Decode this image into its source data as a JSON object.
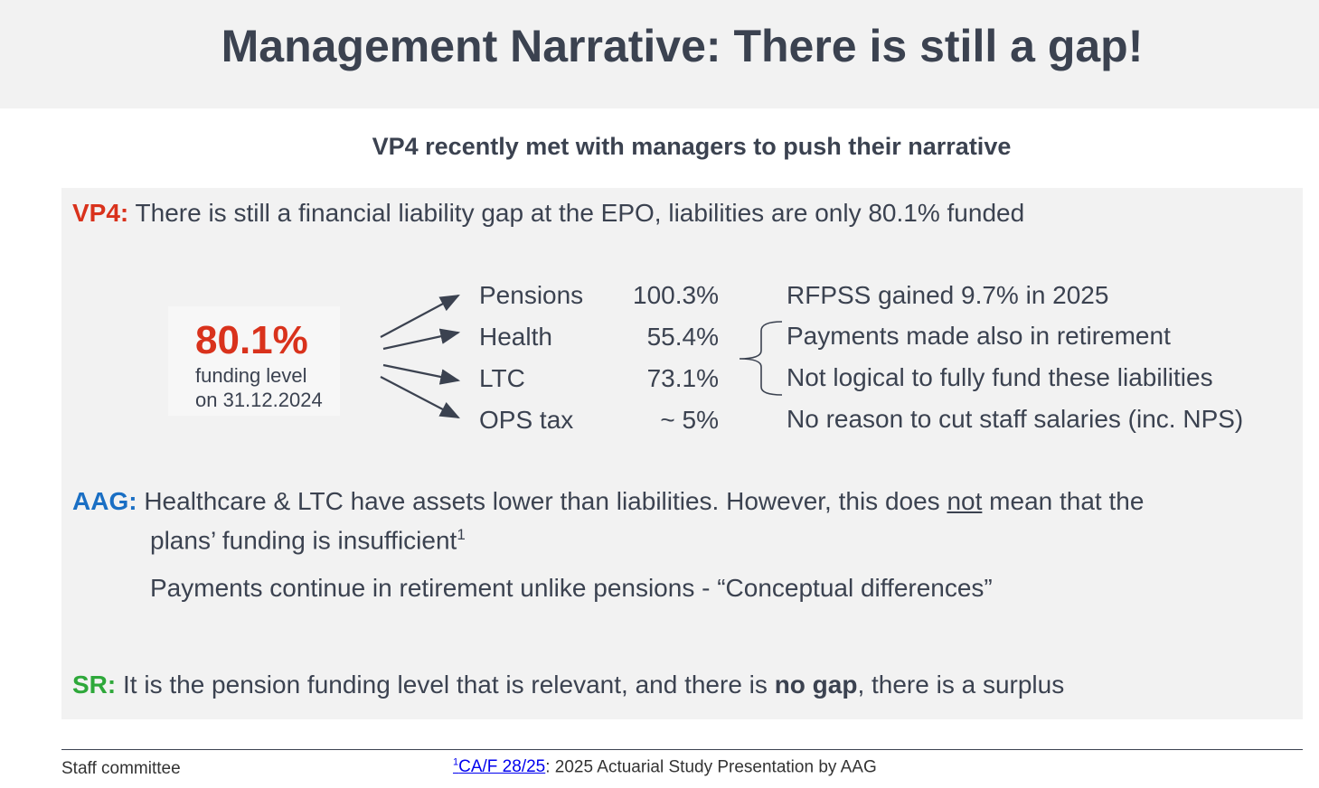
{
  "title": "Management Narrative: There is still a gap!",
  "subtitle": "VP4 recently met with managers to push their narrative",
  "vp4": {
    "label": "VP4:",
    "text": "There is still a financial liability gap at the EPO, liabilities are only 80.1% funded",
    "color": "#d9321c"
  },
  "funding": {
    "value": "80.1%",
    "line1": "funding level",
    "line2": "on 31.12.2024"
  },
  "rows": [
    {
      "name": "Pensions",
      "value": "100.3%",
      "note": "RFPSS gained 9.7% in 2025"
    },
    {
      "name": "Health",
      "value": "55.4%",
      "note": "Payments made also in retirement"
    },
    {
      "name": "LTC",
      "value": "73.1%",
      "note": "Not logical to fully fund these liabilities"
    },
    {
      "name": "OPS tax",
      "value": "~ 5%",
      "note": "No reason to cut staff salaries (inc. NPS)"
    }
  ],
  "aag": {
    "label": "AAG:",
    "color": "#1a6fc4",
    "text1": "Healthcare & LTC have assets lower than liabilities. However, this does ",
    "underlined": "not",
    "text2": " mean that the",
    "line2": "plans’ funding is insufficient",
    "sup": "1",
    "line3": "Payments continue in retirement unlike pensions - “Conceptual differences”"
  },
  "sr": {
    "label": "SR:",
    "color": "#2ea83a",
    "text1": "It is the pension funding level that is relevant, and there is ",
    "bold": "no gap",
    "text2": ", there is a surplus"
  },
  "footer": {
    "left": "Staff committee",
    "sup": "1",
    "link": "CA/F 28/25",
    "rest": ": 2025 Actuarial Study Presentation by AAG"
  }
}
